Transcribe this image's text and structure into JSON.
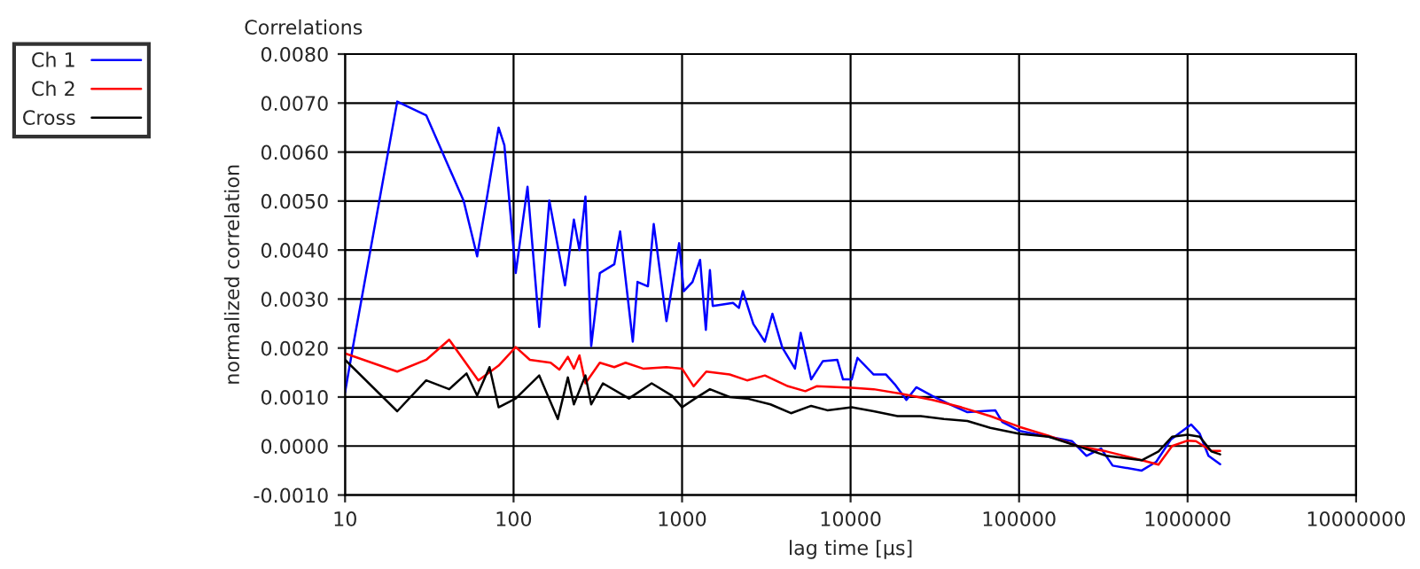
{
  "chart_data": {
    "type": "line",
    "title": "Correlations",
    "xlabel": "lag time [µs]",
    "ylabel": "normalized correlation",
    "log": "x",
    "grid": true,
    "legend": "top left",
    "marker": "none",
    "line_style": "solid",
    "xlim": [
      10,
      10000000
    ],
    "xticks": [
      10,
      100,
      1000,
      10000,
      100000,
      1000000,
      10000000
    ],
    "ylim": [
      -0.001,
      0.008
    ],
    "yticks": [
      {
        "value": -0.001,
        "label": "-0.0010"
      },
      {
        "value": 0,
        "label": "0.0000"
      },
      {
        "value": 0.001,
        "label": "0.0010"
      },
      {
        "value": 0.002,
        "label": "0.0020"
      },
      {
        "value": 0.003,
        "label": "0.0030"
      },
      {
        "value": 0.004,
        "label": "0.0040"
      },
      {
        "value": 0.005,
        "label": "0.0050"
      },
      {
        "value": 0.006,
        "label": "0.0060"
      },
      {
        "value": 0.007,
        "label": "0.0070"
      },
      {
        "value": 0.008,
        "label": "0.0080"
      }
    ],
    "series": [
      {
        "name": "Ch 1",
        "color": "#0000ff",
        "x": [
          10,
          11.2,
          20.4,
          30.3,
          50.6,
          60.8,
          81.5,
          88.2,
          103,
          121,
          142,
          163,
          202,
          228,
          246,
          267,
          289,
          325,
          396,
          429,
          510,
          544,
          627,
          679,
          808,
          961,
          1023,
          1153,
          1279,
          1384,
          1463,
          1521,
          2006,
          2173,
          2296,
          2649,
          3100,
          3437,
          3934,
          4677,
          5059,
          5835,
          6839,
          8337,
          9016,
          10160,
          10990,
          13710,
          16230,
          18290,
          21440,
          24550,
          30640,
          38890,
          49360,
          72240,
          79480,
          100700,
          149900,
          205900,
          251200,
          306400,
          359200,
          534300,
          651900,
          794300,
          1049000,
          1181000,
          1330000,
          1560000
        ],
        "values": [
          0.0011,
          0.00207,
          0.00703,
          0.00675,
          0.005,
          0.00387,
          0.0065,
          0.00614,
          0.00353,
          0.00529,
          0.00243,
          0.00501,
          0.00328,
          0.00462,
          0.004,
          0.00509,
          0.00204,
          0.00353,
          0.00371,
          0.00438,
          0.00213,
          0.00335,
          0.00326,
          0.00453,
          0.00255,
          0.00414,
          0.00316,
          0.00335,
          0.0038,
          0.00237,
          0.00359,
          0.00286,
          0.00292,
          0.00282,
          0.00316,
          0.00249,
          0.00213,
          0.0027,
          0.00201,
          0.00158,
          0.00231,
          0.00136,
          0.00173,
          0.00176,
          0.00136,
          0.00136,
          0.0018,
          0.00146,
          0.00146,
          0.00126,
          0.00094,
          0.0012,
          0.00102,
          0.00085,
          0.00069,
          0.00073,
          0.00049,
          0.00031,
          0.00019,
          0.0001,
          -0.0002,
          -5e-05,
          -0.0004,
          -0.0005,
          -0.00032,
          0.00013,
          0.00044,
          0.00025,
          -0.0002,
          -0.00037
        ]
      },
      {
        "name": "Ch 2",
        "color": "#ff0000",
        "x": [
          10,
          20.4,
          30.3,
          41.5,
          61.8,
          81.5,
          103,
          125,
          166,
          187,
          210,
          228,
          246,
          267,
          325,
          396,
          462,
          587,
          808,
          1000,
          1171,
          1392,
          1916,
          2430,
          3100,
          4255,
          5386,
          6277,
          10160,
          13710,
          20550,
          30640,
          45480,
          67510,
          100700,
          149900,
          222300,
          330000,
          534300,
          672000,
          809000,
          1000000,
          1120000,
          1384000,
          1560000
        ],
        "values": [
          0.00189,
          0.00152,
          0.00176,
          0.00217,
          0.00134,
          0.00164,
          0.00202,
          0.00176,
          0.0017,
          0.00156,
          0.00182,
          0.00158,
          0.00185,
          0.00128,
          0.0017,
          0.00161,
          0.0017,
          0.00158,
          0.00161,
          0.00158,
          0.00122,
          0.00152,
          0.00146,
          0.00134,
          0.00144,
          0.00122,
          0.00112,
          0.00122,
          0.00119,
          0.00116,
          0.00106,
          0.00094,
          0.00079,
          0.00061,
          0.00039,
          0.00021,
          0.0,
          -0.00011,
          -0.00029,
          -0.00038,
          0.0,
          0.00011,
          0.0001,
          -0.0001,
          -0.0001
        ]
      },
      {
        "name": "Cross",
        "color": "#000000",
        "x": [
          10,
          20.4,
          30.3,
          41.5,
          52.6,
          60.8,
          72,
          81.5,
          103,
          142,
          183,
          210,
          228,
          267,
          289,
          339,
          484,
          660,
          870,
          1000,
          1195,
          1463,
          1916,
          2430,
          3346,
          4430,
          5835,
          7282,
          10160,
          13710,
          19000,
          26100,
          35800,
          49360,
          67510,
          100700,
          149900,
          222300,
          330000,
          534300,
          672000,
          809000,
          1000000,
          1181000,
          1384000,
          1560000
        ],
        "values": [
          0.00176,
          0.00071,
          0.00134,
          0.00116,
          0.00148,
          0.00103,
          0.00161,
          0.00079,
          0.00097,
          0.00144,
          0.00055,
          0.0014,
          0.00085,
          0.00144,
          0.00085,
          0.00128,
          0.00097,
          0.00128,
          0.00103,
          0.00079,
          0.00097,
          0.00116,
          0.001,
          0.00097,
          0.00085,
          0.00067,
          0.00082,
          0.00073,
          0.00079,
          0.00071,
          0.00061,
          0.00061,
          0.00055,
          0.00051,
          0.00037,
          0.00025,
          0.00019,
          0.0,
          -0.0002,
          -0.00029,
          -0.00011,
          0.00019,
          0.00023,
          0.00019,
          -0.00011,
          -0.00017
        ]
      }
    ]
  }
}
